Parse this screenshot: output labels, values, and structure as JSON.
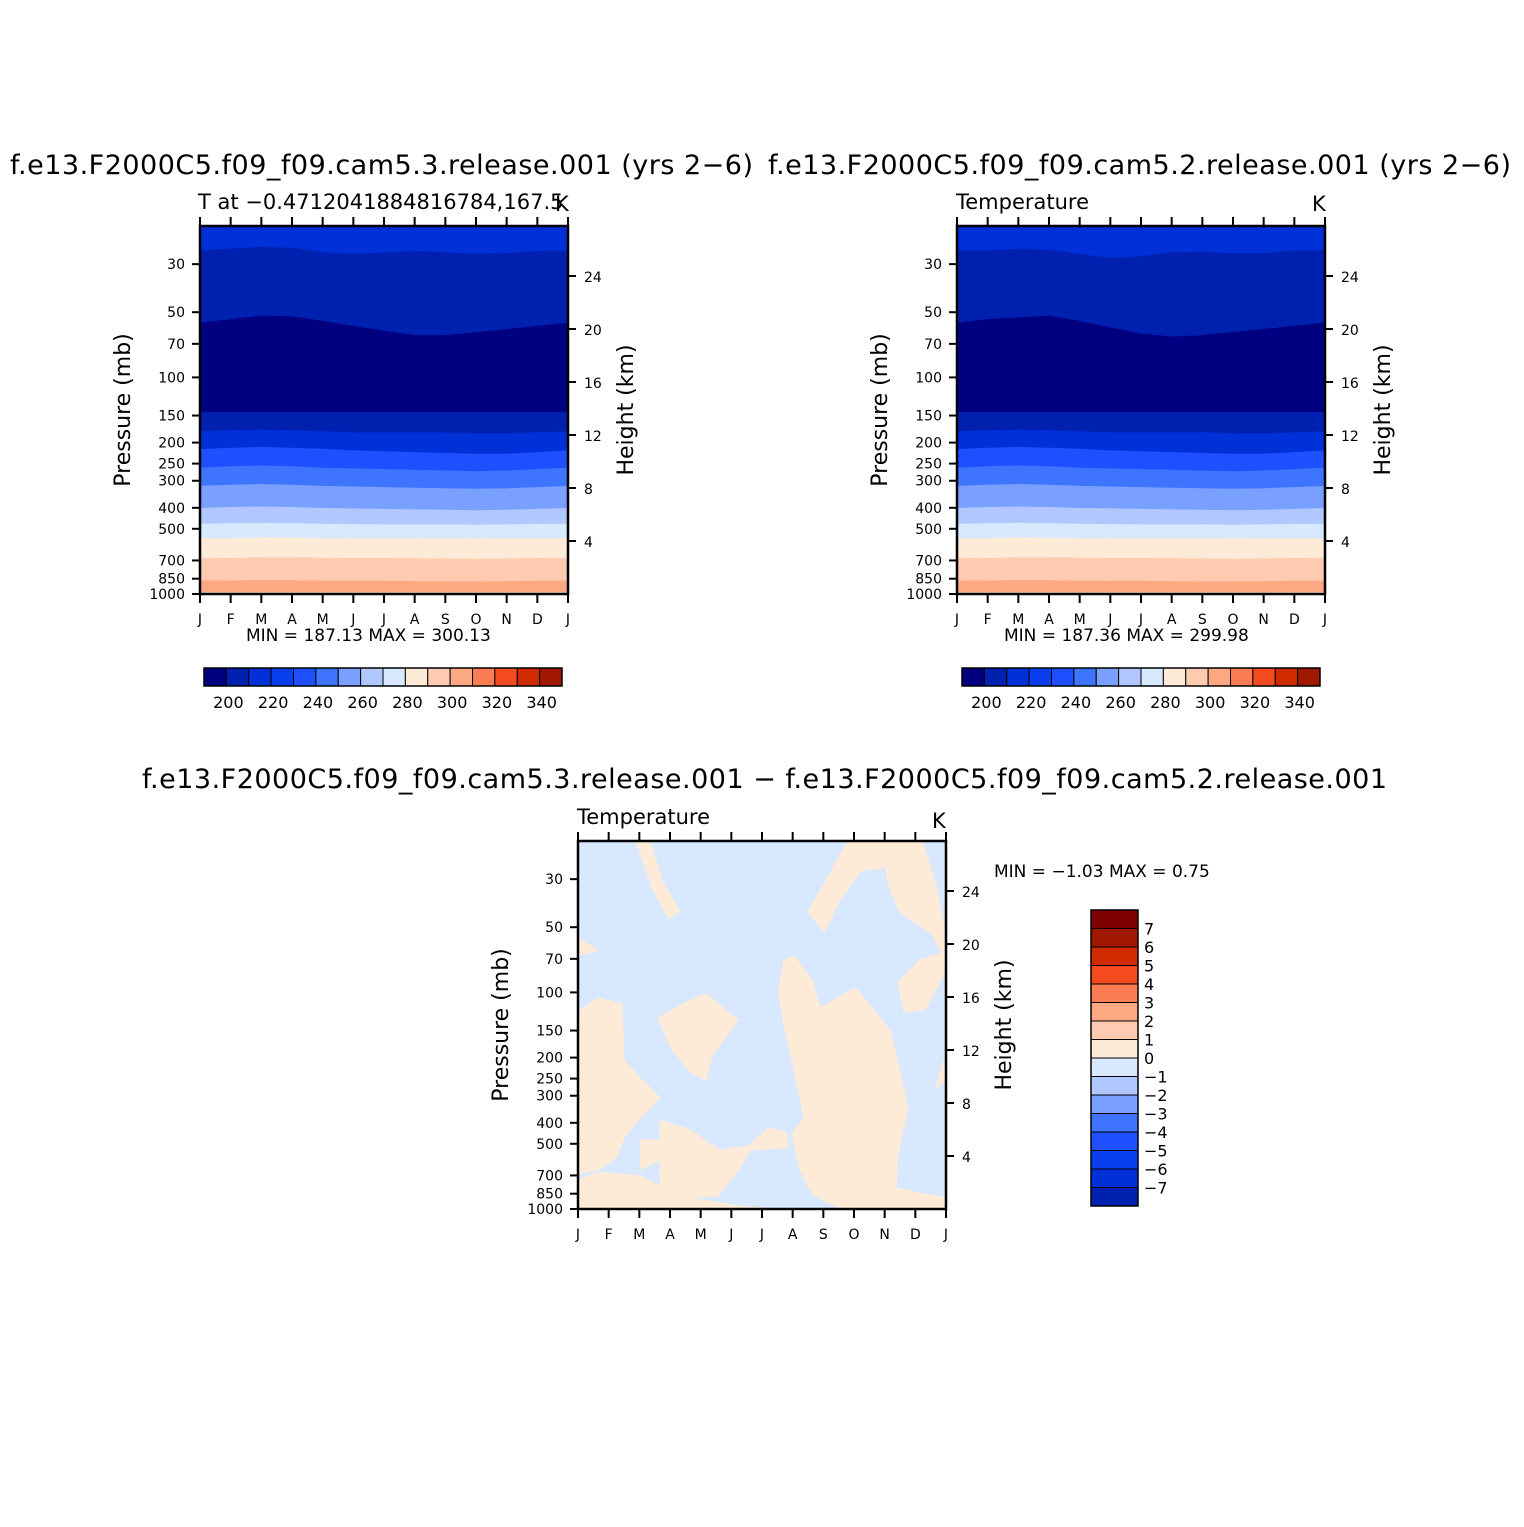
{
  "panel1": {
    "title": "f.e13.F2000C5.f09_f09.cam5.3.release.001  (yrs 2−6)",
    "subtitle": "T at −0.4712041884816784,167.5",
    "units": "K",
    "stats": "MIN = 187.13 MAX = 300.13"
  },
  "panel2": {
    "title": "f.e13.F2000C5.f09_f09.cam5.2.release.001  (yrs 2−6)",
    "subtitle": "Temperature",
    "units": "K",
    "stats": "MIN = 187.36 MAX = 299.98"
  },
  "panel3": {
    "title": "f.e13.F2000C5.f09_f09.cam5.3.release.001  −  f.e13.F2000C5.f09_f09.cam5.2.release.001",
    "subtitle": "Temperature",
    "units": "K",
    "stats": "MIN =   −1.03  MAX =     0.75"
  },
  "chart_data": [
    {
      "type": "heatmap",
      "title": "f.e13.F2000C5.f09_f09.cam5.3.release.001  (yrs 2−6)",
      "subtitle": "T at −0.4712041884816784,167.5",
      "xlabel": "",
      "ylabel": "Pressure (mb)",
      "ylabel_right": "Height (km)",
      "x_ticks": [
        "J",
        "F",
        "M",
        "A",
        "M",
        "J",
        "J",
        "A",
        "S",
        "O",
        "N",
        "D",
        "J"
      ],
      "y_ticks": [
        30,
        50,
        70,
        100,
        150,
        200,
        250,
        300,
        400,
        500,
        700,
        850,
        1000
      ],
      "y_right_ticks": [
        24,
        20,
        16,
        12,
        8,
        4
      ],
      "ylim": [
        1000,
        20
      ],
      "y_scale": "log",
      "units": "K",
      "colorbar": {
        "levels": [
          200,
          220,
          240,
          260,
          280,
          300,
          320,
          340
        ],
        "labels": [
          "200",
          "220",
          "240",
          "260",
          "280",
          "300",
          "320",
          "340"
        ]
      },
      "min": 187.13,
      "max": 300.13
    },
    {
      "type": "heatmap",
      "title": "f.e13.F2000C5.f09_f09.cam5.2.release.001  (yrs 2−6)",
      "subtitle": "Temperature",
      "ylabel": "Pressure (mb)",
      "ylabel_right": "Height (km)",
      "x_ticks": [
        "J",
        "F",
        "M",
        "A",
        "M",
        "J",
        "J",
        "A",
        "S",
        "O",
        "N",
        "D",
        "J"
      ],
      "y_ticks": [
        30,
        50,
        70,
        100,
        150,
        200,
        250,
        300,
        400,
        500,
        700,
        850,
        1000
      ],
      "y_right_ticks": [
        24,
        20,
        16,
        12,
        8,
        4
      ],
      "ylim": [
        1000,
        20
      ],
      "y_scale": "log",
      "units": "K",
      "colorbar": {
        "levels": [
          200,
          220,
          240,
          260,
          280,
          300,
          320,
          340
        ],
        "labels": [
          "200",
          "220",
          "240",
          "260",
          "280",
          "300",
          "320",
          "340"
        ]
      },
      "min": 187.36,
      "max": 299.98
    },
    {
      "type": "heatmap",
      "title": "f.e13.F2000C5.f09_f09.cam5.3.release.001  −  f.e13.F2000C5.f09_f09.cam5.2.release.001",
      "subtitle": "Temperature",
      "ylabel": "Pressure (mb)",
      "ylabel_right": "Height (km)",
      "x_ticks": [
        "J",
        "F",
        "M",
        "A",
        "M",
        "J",
        "J",
        "A",
        "S",
        "O",
        "N",
        "D",
        "J"
      ],
      "y_ticks": [
        30,
        50,
        70,
        100,
        150,
        200,
        250,
        300,
        400,
        500,
        700,
        850,
        1000
      ],
      "y_right_ticks": [
        24,
        20,
        16,
        12,
        8,
        4
      ],
      "ylim": [
        1000,
        20
      ],
      "y_scale": "log",
      "units": "K",
      "colorbar": {
        "labels": [
          "7",
          "6",
          "5",
          "4",
          "3",
          "2",
          "1",
          "0",
          "−1",
          "−2",
          "−3",
          "−4",
          "−5",
          "−6",
          "−7"
        ]
      },
      "min": -1.03,
      "max": 0.75
    }
  ],
  "colors": {
    "field_bands": [
      "#000080",
      "#0020b0",
      "#0030d8",
      "#0a3ff0",
      "#1e50ff",
      "#3f74ff",
      "#7aa0ff",
      "#b0c8ff",
      "#d7e8ff",
      "#fdebd8",
      "#fecbb0",
      "#fca882",
      "#fa7c52",
      "#f44a20",
      "#d02a00",
      "#a01800",
      "#800000"
    ],
    "diff_neg": "#d7e8ff",
    "diff_pos": "#fdebd8",
    "diff_bar": [
      "#800000",
      "#a01800",
      "#d02a00",
      "#f44a20",
      "#fa7c52",
      "#fca882",
      "#fecbb0",
      "#fdebd8",
      "#d7e8ff",
      "#b0c8ff",
      "#7aa0ff",
      "#3f74ff",
      "#1e50ff",
      "#0a3ff0",
      "#0030d8",
      "#0020b0",
      "#000080"
    ]
  }
}
